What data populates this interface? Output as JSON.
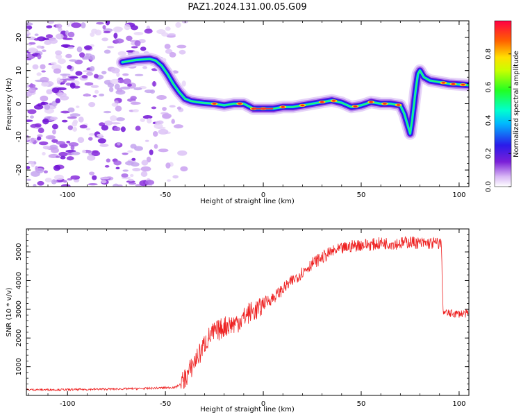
{
  "title": "PAZ1.2024.131.00.05.G09",
  "chart_data": [
    {
      "type": "heatmap",
      "xlabel": "Height of straight line (km)",
      "ylabel": "Frequency (Hz)",
      "xlim": [
        -121,
        105
      ],
      "ylim": [
        -25,
        25
      ],
      "xticks": [
        -100,
        -50,
        0,
        50,
        100
      ],
      "yticks": [
        -20,
        -10,
        0,
        10,
        20
      ],
      "colorbar": {
        "label": "Normalized spectral amplitude",
        "range": [
          0.0,
          1.0
        ],
        "ticks": [
          0.0,
          0.2,
          0.4,
          0.6,
          0.8
        ]
      },
      "ridge": {
        "x": [
          -72,
          -65,
          -58,
          -55,
          -52,
          -49,
          -46,
          -43,
          -40,
          -37,
          -34,
          -30,
          -25,
          -20,
          -15,
          -10,
          -5,
          0,
          5,
          10,
          15,
          20,
          25,
          30,
          35,
          40,
          45,
          50,
          55,
          60,
          65,
          70,
          72,
          74,
          75,
          76,
          78,
          79,
          80,
          82,
          85,
          90,
          95,
          100,
          105
        ],
        "y": [
          12.5,
          13.2,
          13.5,
          13,
          11.5,
          9,
          6,
          3.5,
          1.5,
          0.8,
          0.5,
          0.2,
          0,
          -0.5,
          0,
          0,
          -1.5,
          -1.5,
          -1.5,
          -1,
          -1,
          -0.5,
          0,
          0.5,
          1,
          0.3,
          -1,
          -0.5,
          0.5,
          0,
          0,
          -0.5,
          -3,
          -7,
          -9,
          -5,
          5,
          9,
          10,
          8,
          7,
          6.5,
          6,
          5.8,
          5.6
        ]
      }
    },
    {
      "type": "line",
      "xlabel": "Height of straight line (km)",
      "ylabel": "SNR (10 * v/v)",
      "xlim": [
        -121,
        105
      ],
      "ylim": [
        0,
        5800
      ],
      "xticks": [
        -100,
        -50,
        0,
        50,
        100
      ],
      "yticks": [
        1000,
        2000,
        3000,
        4000,
        5000
      ],
      "color": "#ee2222",
      "series": [
        {
          "x": [
            -121,
            -100,
            -80,
            -60,
            -45,
            -42,
            -40,
            -38,
            -35,
            -32,
            -30,
            -28,
            -25,
            -22,
            -20,
            -18,
            -15,
            -12,
            -10,
            -8,
            -5,
            -2,
            0,
            5,
            10,
            15,
            20,
            25,
            30,
            35,
            40,
            45,
            50,
            55,
            60,
            65,
            70,
            75,
            80,
            85,
            90,
            91,
            91.5,
            92,
            95,
            100,
            105
          ],
          "y": [
            200,
            200,
            220,
            240,
            280,
            400,
            600,
            800,
            1200,
            1500,
            1800,
            2000,
            2200,
            2300,
            2400,
            2450,
            2500,
            2600,
            2700,
            2850,
            2950,
            3000,
            3200,
            3400,
            3700,
            4000,
            4300,
            4600,
            4800,
            5000,
            5100,
            5200,
            5250,
            5250,
            5300,
            5300,
            5300,
            5350,
            5300,
            5300,
            5300,
            5250,
            3500,
            2900,
            2850,
            2850,
            2850
          ]
        }
      ]
    }
  ]
}
